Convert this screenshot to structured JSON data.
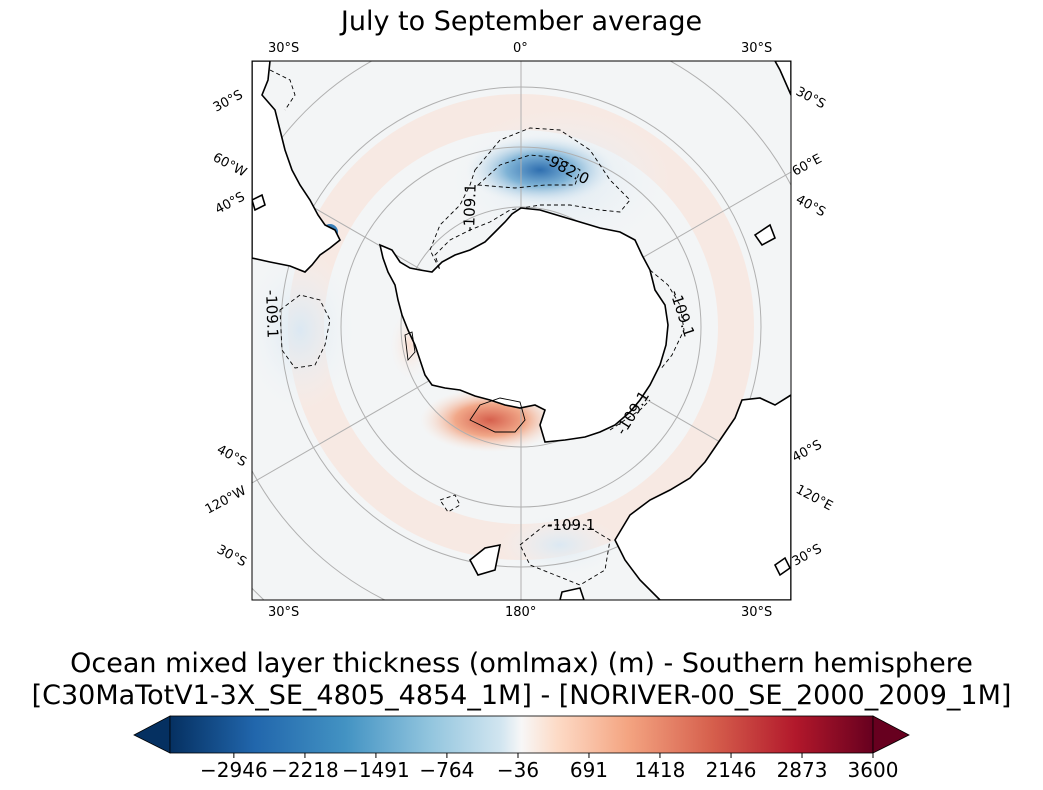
{
  "title": "July to September average",
  "caption": {
    "line1": "Ocean mixed layer thickness (omlmax) (m) - Southern hemisphere",
    "line2": "[C30MaTotV1-3X_SE_4805_4854_1M] - [NORIVER-00_SE_2000_2009_1M]"
  },
  "map": {
    "projection": "south-polar-stereographic",
    "labels": {
      "top_left": "30°S",
      "top_center": "0°",
      "top_right": "30°S",
      "left_30s_upper": "30°S",
      "left_60w": "60°W",
      "left_40s_upper": "40°S",
      "left_40s_lower": "40°S",
      "left_120w": "120°W",
      "left_30s_lower": "30°S",
      "right_30s_upper": "30°S",
      "right_60e": "60°E",
      "right_40s_upper": "40°S",
      "right_40s_lower": "40°S",
      "right_120e": "120°E",
      "right_30s_lower": "30°S",
      "bottom_left": "30°S",
      "bottom_center": "180°",
      "bottom_right": "30°S"
    },
    "contour_labels": {
      "c1": "-982.0",
      "c2": "-109.1",
      "c3": "-109.1",
      "c4": "-109.1",
      "c5": "-109.1",
      "c6": "-109.1"
    }
  },
  "colorbar": {
    "colormap": "RdBu_r",
    "min": -3600,
    "max": 3600,
    "extend": "both",
    "ticks": [
      "−2946",
      "−2218",
      "−1491",
      "−764",
      "−36",
      "691",
      "1418",
      "2146",
      "2873",
      "3600"
    ],
    "tick_values": [
      -2946,
      -2218,
      -1491,
      -764,
      -36,
      691,
      1418,
      2146,
      2873,
      3600
    ]
  }
}
